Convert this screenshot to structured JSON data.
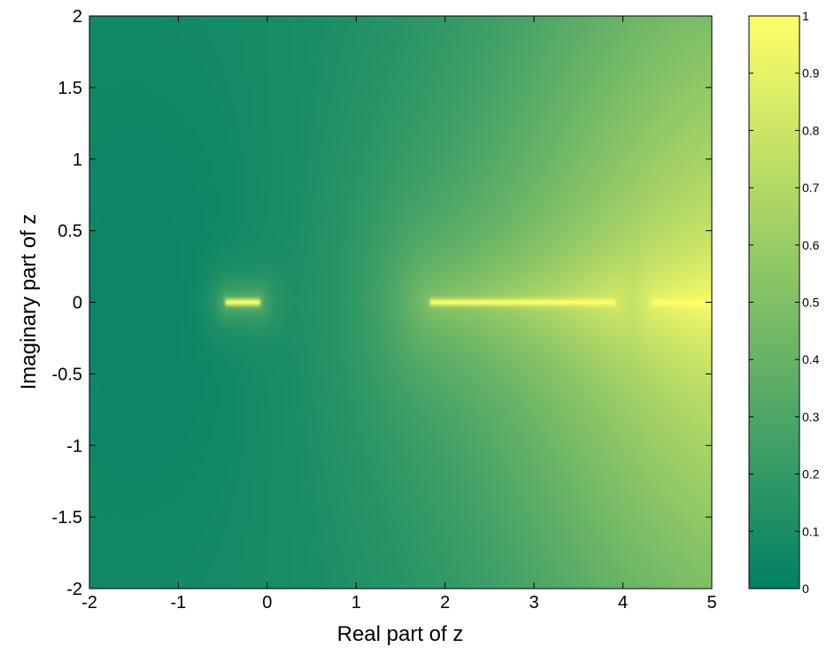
{
  "chart_data": {
    "type": "heatmap",
    "title": "",
    "xlabel": "Real part of z",
    "ylabel": "Imaginary part of z",
    "xlim": [
      -2,
      5
    ],
    "ylim": [
      -2,
      2
    ],
    "x_ticks": [
      -2,
      -1,
      0,
      1,
      2,
      3,
      4,
      5
    ],
    "x_tick_labels": [
      "-2",
      "-1",
      "0",
      "1",
      "2",
      "3",
      "4",
      "5"
    ],
    "y_ticks": [
      -2,
      -1.5,
      -1,
      -0.5,
      0,
      0.5,
      1,
      1.5,
      2
    ],
    "y_tick_labels": [
      "-2",
      "-1.5",
      "-1",
      "-0.5",
      "0",
      "0.5",
      "1",
      "1.5",
      "2"
    ],
    "colorbar": {
      "range": [
        0,
        1
      ],
      "ticks": [
        0,
        0.1,
        0.2,
        0.3,
        0.4,
        0.5,
        0.6,
        0.7,
        0.8,
        0.9,
        1
      ],
      "tick_labels": [
        "0",
        "0.1",
        "0.2",
        "0.3",
        "0.4",
        "0.5",
        "0.6",
        "0.7",
        "0.8",
        "0.9",
        "1"
      ],
      "colormap": "summer",
      "color_low": "#008066",
      "color_high": "#ffff66"
    },
    "bright_segments_on_real_axis": [
      {
        "x_start": -0.45,
        "x_end": -0.1,
        "value": 1.0
      },
      {
        "x_start": 1.85,
        "x_end": 3.9,
        "value": 1.0
      },
      {
        "x_start": 4.35,
        "x_end": 5.0,
        "value": 1.0
      }
    ],
    "grid": false,
    "legend": "none"
  }
}
